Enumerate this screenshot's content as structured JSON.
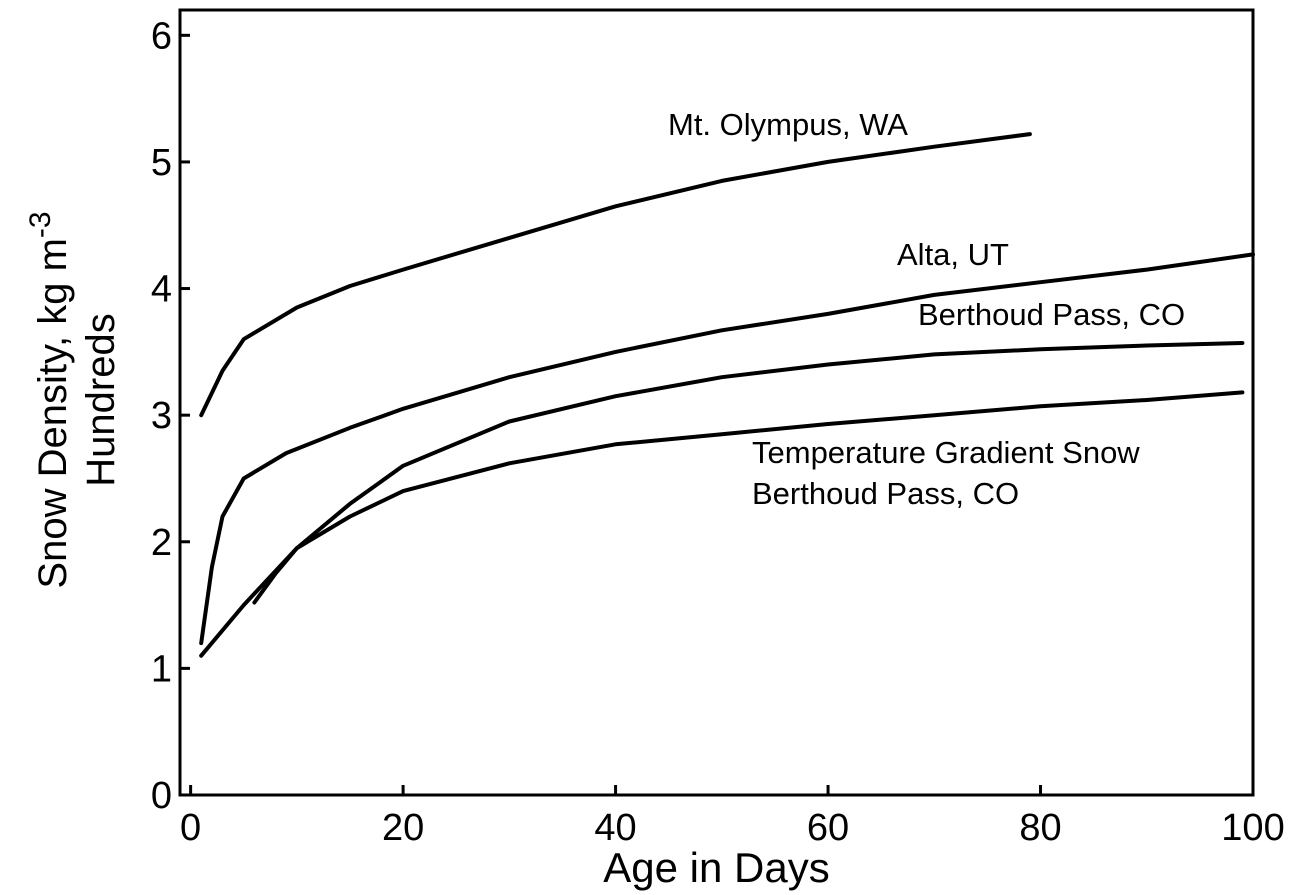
{
  "chart_data": {
    "type": "line",
    "xlabel": "Age in Days",
    "ylabel": {
      "text": "Snow Density, kg m",
      "superscript": "-3"
    },
    "ylabel_line2": "Hundreds",
    "xlim": [
      -1,
      100
    ],
    "ylim": [
      0,
      6.2
    ],
    "xticks": [
      0,
      20,
      40,
      60,
      80,
      100
    ],
    "yticks": [
      0,
      1,
      2,
      3,
      4,
      5,
      6
    ],
    "series": [
      {
        "name": "Mt. Olympus, WA",
        "color": "#000000",
        "x": [
          1,
          3,
          5,
          10,
          15,
          20,
          30,
          40,
          50,
          60,
          70,
          79
        ],
        "values": [
          3.0,
          3.35,
          3.6,
          3.85,
          4.02,
          4.15,
          4.4,
          4.65,
          4.85,
          5.0,
          5.12,
          5.22
        ]
      },
      {
        "name": "Alta, UT",
        "color": "#000000",
        "x": [
          1,
          2,
          3,
          5,
          9,
          15,
          20,
          30,
          40,
          50,
          60,
          70,
          80,
          90,
          100
        ],
        "values": [
          1.2,
          1.8,
          2.2,
          2.5,
          2.7,
          2.9,
          3.05,
          3.3,
          3.5,
          3.67,
          3.8,
          3.95,
          4.05,
          4.15,
          4.27
        ]
      },
      {
        "name": "Berthoud Pass, CO",
        "color": "#000000",
        "x": [
          1,
          5,
          10,
          15,
          20,
          30,
          40,
          50,
          60,
          70,
          80,
          90,
          99
        ],
        "values": [
          1.1,
          1.5,
          1.95,
          2.3,
          2.6,
          2.95,
          3.15,
          3.3,
          3.4,
          3.48,
          3.52,
          3.55,
          3.57
        ]
      },
      {
        "name": "Temperature Gradient Snow Berthoud Pass, CO",
        "color": "#000000",
        "x": [
          6,
          8,
          10,
          15,
          20,
          30,
          40,
          50,
          60,
          70,
          80,
          90,
          99
        ],
        "values": [
          1.52,
          1.75,
          1.95,
          2.2,
          2.4,
          2.62,
          2.77,
          2.85,
          2.93,
          3.0,
          3.07,
          3.12,
          3.18
        ]
      }
    ]
  }
}
